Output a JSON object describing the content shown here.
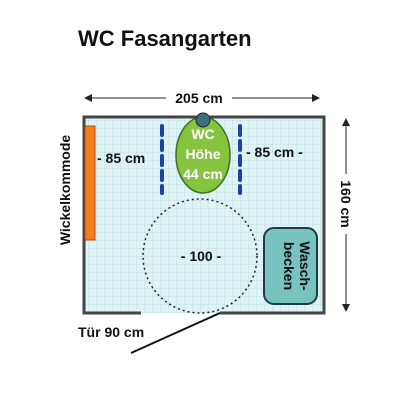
{
  "title": "WC Fasangarten",
  "width_label": "205 cm",
  "height_label": "160 cm",
  "changing_table_label": "Wickelkommode",
  "left_clearance_label": "- 85 cm",
  "right_clearance_label": "- 85 cm -",
  "toilet_lines": [
    "WC",
    "Höhe",
    "44 cm"
  ],
  "turning_circle_label": "- 100 -",
  "sink_lines": [
    "Wasch-",
    "becken"
  ],
  "door_label": "Tür 90 cm",
  "colors": {
    "room_fill": "#dff3f4",
    "grid": "#b5dde0",
    "wall": "#444444",
    "changing_table": "#f07f22",
    "toilet": "#86c440",
    "sink": "#78c2bf",
    "grab_bar": "#1e3fae"
  }
}
